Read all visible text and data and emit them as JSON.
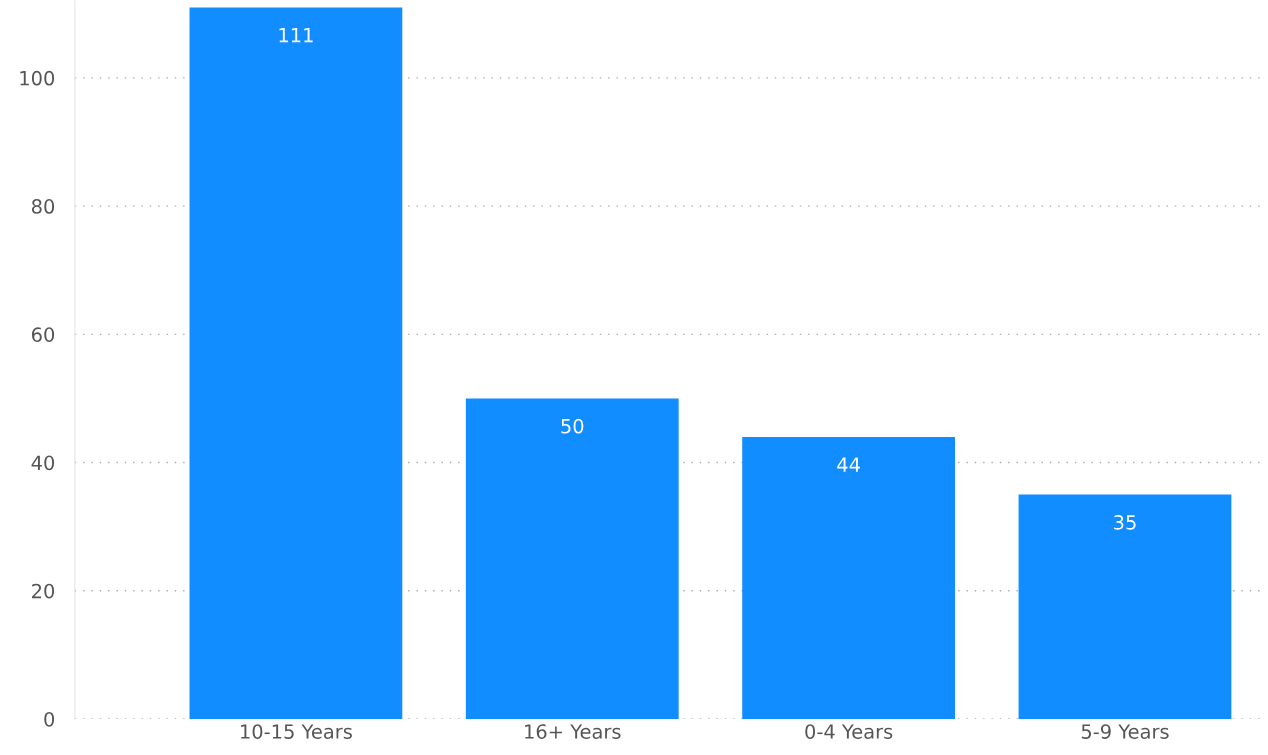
{
  "chart_data": {
    "type": "bar",
    "categories": [
      "10-15 Years",
      "16+ Years",
      "0-4 Years",
      "5-9 Years"
    ],
    "values": [
      111,
      50,
      44,
      35
    ],
    "color": "#118dff",
    "ylim": [
      0,
      112
    ],
    "yticks": [
      0,
      20,
      40,
      60,
      80,
      100
    ],
    "grid": "y",
    "data_labels": true
  }
}
